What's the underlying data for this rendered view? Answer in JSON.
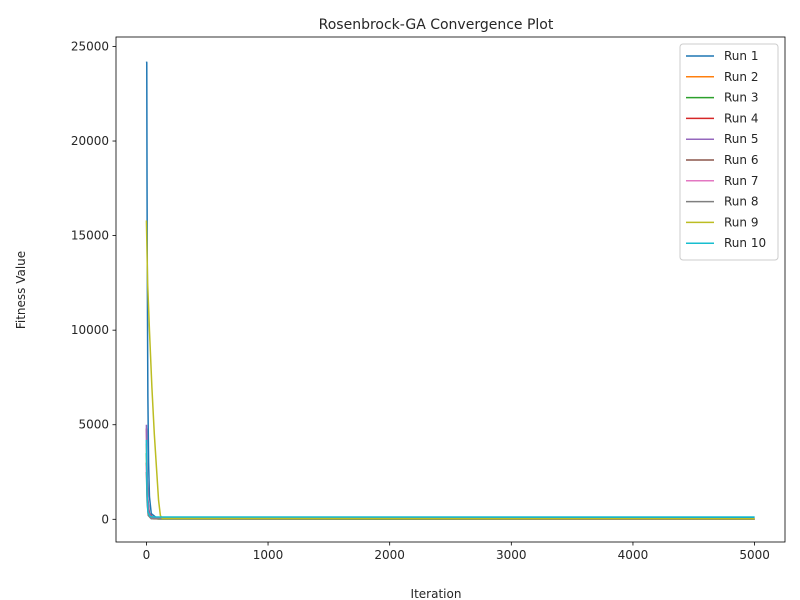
{
  "chart_data": {
    "type": "line",
    "title": "Rosenbrock-GA Convergence Plot",
    "xlabel": "Iteration",
    "ylabel": "Fitness Value",
    "xlim": [
      -250,
      5250
    ],
    "ylim": [
      -1200,
      25500
    ],
    "xticks": [
      0,
      1000,
      2000,
      3000,
      4000,
      5000
    ],
    "yticks": [
      0,
      5000,
      10000,
      15000,
      20000,
      25000
    ],
    "grid": false,
    "legend_position": "top-right",
    "series": [
      {
        "name": "Run 1",
        "color": "#1f77b4",
        "points": [
          [
            0,
            24200
          ],
          [
            3,
            24150
          ],
          [
            5,
            18000
          ],
          [
            8,
            12000
          ],
          [
            12,
            6500
          ],
          [
            18,
            3000
          ],
          [
            25,
            1200
          ],
          [
            40,
            300
          ],
          [
            80,
            100
          ],
          [
            5000,
            100
          ]
        ]
      },
      {
        "name": "Run 2",
        "color": "#ff7f0e",
        "points": [
          [
            0,
            4000
          ],
          [
            5,
            1800
          ],
          [
            12,
            500
          ],
          [
            30,
            100
          ],
          [
            60,
            20
          ],
          [
            5000,
            10
          ]
        ]
      },
      {
        "name": "Run 3",
        "color": "#2ca02c",
        "points": [
          [
            0,
            3500
          ],
          [
            6,
            1500
          ],
          [
            15,
            400
          ],
          [
            40,
            60
          ],
          [
            100,
            15
          ],
          [
            5000,
            5
          ]
        ]
      },
      {
        "name": "Run 4",
        "color": "#d62728",
        "points": [
          [
            0,
            4800
          ],
          [
            5,
            2500
          ],
          [
            12,
            1000
          ],
          [
            25,
            300
          ],
          [
            60,
            50
          ],
          [
            5000,
            20
          ]
        ]
      },
      {
        "name": "Run 5",
        "color": "#9467bd",
        "points": [
          [
            0,
            5000
          ],
          [
            4,
            3000
          ],
          [
            10,
            1200
          ],
          [
            22,
            300
          ],
          [
            50,
            60
          ],
          [
            5000,
            15
          ]
        ]
      },
      {
        "name": "Run 6",
        "color": "#8c564b",
        "points": [
          [
            0,
            3000
          ],
          [
            6,
            1200
          ],
          [
            15,
            300
          ],
          [
            40,
            50
          ],
          [
            5000,
            10
          ]
        ]
      },
      {
        "name": "Run 7",
        "color": "#e377c2",
        "points": [
          [
            0,
            2800
          ],
          [
            6,
            1000
          ],
          [
            15,
            250
          ],
          [
            40,
            40
          ],
          [
            5000,
            8
          ]
        ]
      },
      {
        "name": "Run 8",
        "color": "#7f7f7f",
        "points": [
          [
            0,
            2500
          ],
          [
            6,
            900
          ],
          [
            15,
            200
          ],
          [
            40,
            30
          ],
          [
            5000,
            5
          ]
        ]
      },
      {
        "name": "Run 9",
        "color": "#bcbd22",
        "points": [
          [
            0,
            15800
          ],
          [
            10,
            12500
          ],
          [
            25,
            10000
          ],
          [
            45,
            7000
          ],
          [
            65,
            4500
          ],
          [
            85,
            2500
          ],
          [
            100,
            1000
          ],
          [
            115,
            200
          ],
          [
            130,
            50
          ],
          [
            5000,
            30
          ]
        ]
      },
      {
        "name": "Run 10",
        "color": "#17becf",
        "points": [
          [
            0,
            4200
          ],
          [
            5,
            1500
          ],
          [
            12,
            400
          ],
          [
            30,
            150
          ],
          [
            60,
            120
          ],
          [
            5000,
            120
          ]
        ]
      }
    ]
  }
}
